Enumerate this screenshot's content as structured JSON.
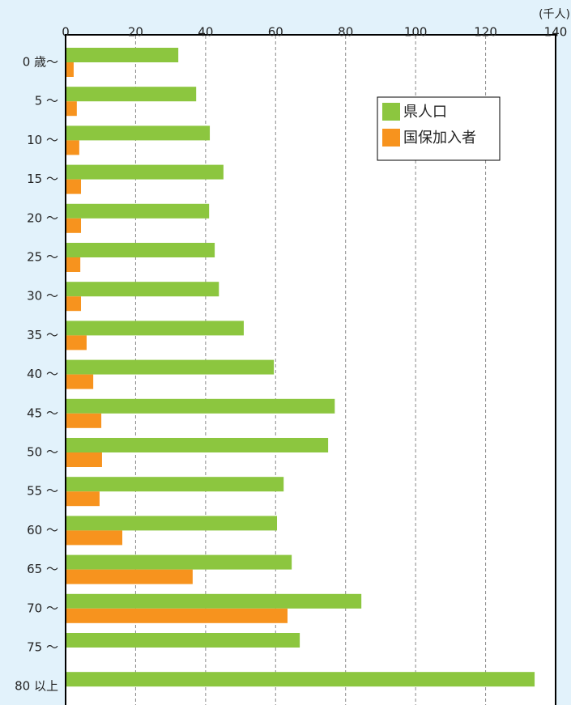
{
  "chart_data": {
    "type": "barh",
    "unit_label": "(千人)",
    "categories": [
      "0 歳～",
      "5 ～",
      "10 ～",
      "15 ～",
      "20 ～",
      "25 ～",
      "30 ～",
      "35 ～",
      "40 ～",
      "45 ～",
      "50 ～",
      "55 ～",
      "60 ～",
      "65 ～",
      "70 ～",
      "75 ～",
      "80 以上"
    ],
    "series": [
      {
        "name": "県人口",
        "color": "#8cc63f",
        "values": [
          32.2,
          37.3,
          41.2,
          45.1,
          41.0,
          42.6,
          43.8,
          50.9,
          59.5,
          76.9,
          75.0,
          62.3,
          60.4,
          64.6,
          84.5,
          66.9,
          134.0
        ]
      },
      {
        "name": "国保加入者",
        "color": "#f7931e",
        "values": [
          2.3,
          3.2,
          3.9,
          4.4,
          4.4,
          4.2,
          4.4,
          6.0,
          7.9,
          10.2,
          10.4,
          9.7,
          16.2,
          36.3,
          63.4,
          null,
          null
        ]
      }
    ],
    "xlim": [
      0,
      140
    ],
    "xticks": [
      0,
      20,
      40,
      60,
      80,
      100,
      120,
      140
    ],
    "grid": true
  }
}
